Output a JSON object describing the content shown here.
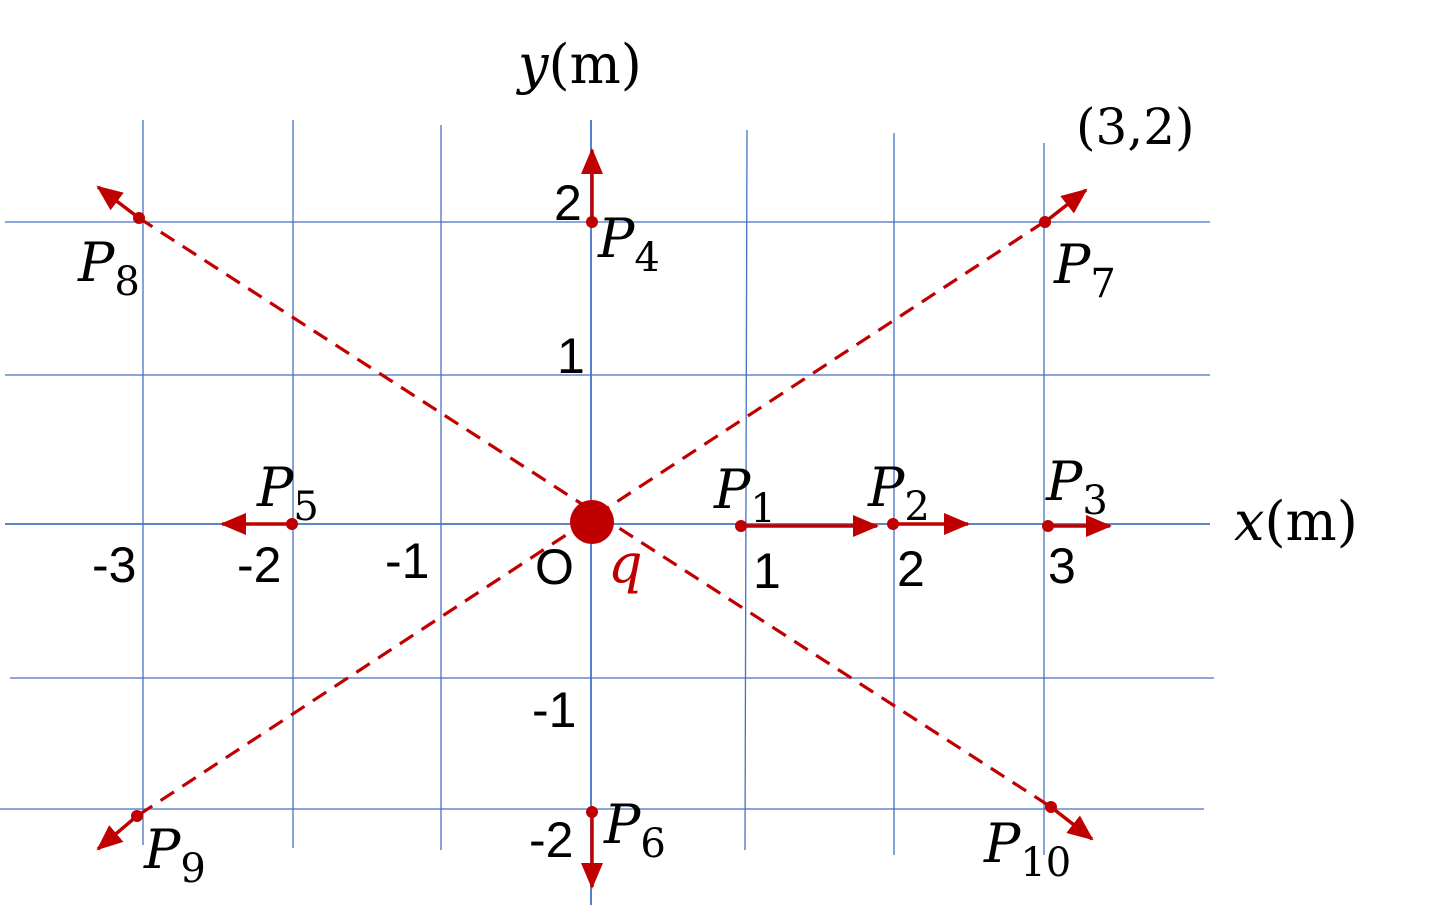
{
  "axes": {
    "x_var": "x",
    "y_var": "y",
    "unit": "(m)"
  },
  "x_ticks": [
    "-3",
    "-2",
    "-1",
    "1",
    "2",
    "3"
  ],
  "y_ticks": [
    "2",
    "1",
    "-1",
    "-2"
  ],
  "origin_label": "O",
  "charge_label": "q",
  "corner_label": "(3,2)",
  "points": [
    {
      "name": "P",
      "sub": "1",
      "x": 1,
      "y": 0
    },
    {
      "name": "P",
      "sub": "2",
      "x": 2,
      "y": 0
    },
    {
      "name": "P",
      "sub": "3",
      "x": 3,
      "y": 0
    },
    {
      "name": "P",
      "sub": "4",
      "x": 0,
      "y": 2
    },
    {
      "name": "P",
      "sub": "5",
      "x": -2,
      "y": 0
    },
    {
      "name": "P",
      "sub": "6",
      "x": 0,
      "y": -2
    },
    {
      "name": "P",
      "sub": "7",
      "x": 3,
      "y": 2
    },
    {
      "name": "P",
      "sub": "8",
      "x": -3,
      "y": 2
    },
    {
      "name": "P",
      "sub": "9",
      "x": -3,
      "y": -2
    },
    {
      "name": "P",
      "sub": "10",
      "x": 3,
      "y": -2
    }
  ],
  "colors": {
    "grid": "#4472c4",
    "accent": "#c00000",
    "text": "#000000"
  }
}
